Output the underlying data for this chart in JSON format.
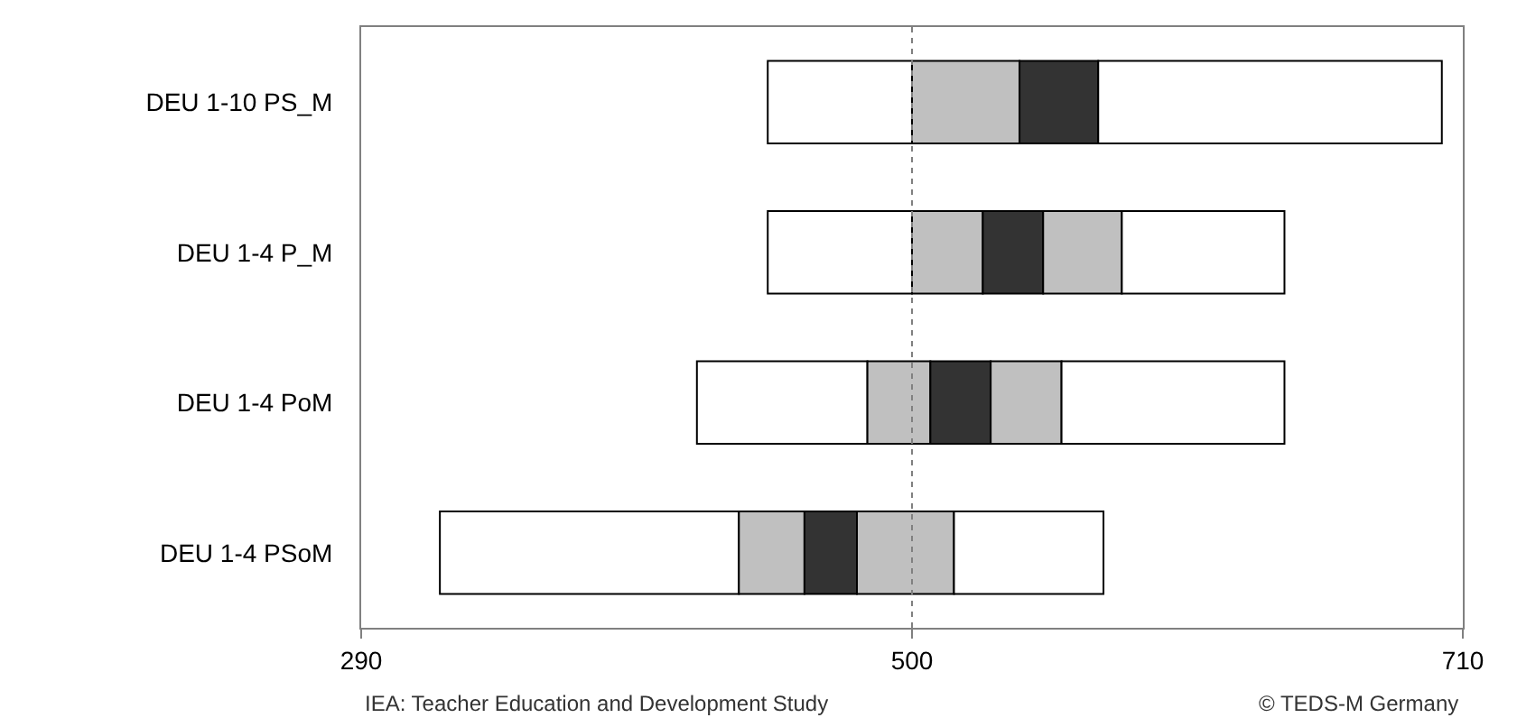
{
  "chart_data": {
    "type": "bar",
    "orientation": "horizontal",
    "categories": [
      "DEU 1-10 PS_M",
      "DEU 1-4 P_M",
      "DEU 1-4 PoM",
      "DEU 1-4 PSoM"
    ],
    "series": [
      {
        "color": "#ffffff",
        "base": [
          445,
          445,
          418,
          320
        ],
        "values": [
          55,
          55,
          65,
          114
        ]
      },
      {
        "color": "#c0c0c0",
        "base": [
          500,
          500,
          483,
          434
        ],
        "values": [
          41,
          27,
          24,
          25
        ]
      },
      {
        "color": "#333333",
        "base": [
          541,
          527,
          507,
          459
        ],
        "values": [
          30,
          23,
          23,
          20
        ]
      },
      {
        "color": "#c0c0c0",
        "base": [
          null,
          550,
          530,
          479
        ],
        "values": [
          null,
          30,
          27,
          37
        ]
      },
      {
        "color": "#ffffff",
        "base": [
          571,
          580,
          557,
          516
        ],
        "values": [
          131,
          62,
          85,
          57
        ]
      }
    ],
    "xlim": [
      290,
      710
    ],
    "xticks": [
      290,
      500,
      710
    ],
    "ref_lines": [
      {
        "axis": "x",
        "value": 500,
        "line_style": "dotted",
        "color": "#808080"
      }
    ],
    "annotations": [
      "IEA: Teacher Education and Development Study",
      "© TEDS-M Germany"
    ]
  }
}
